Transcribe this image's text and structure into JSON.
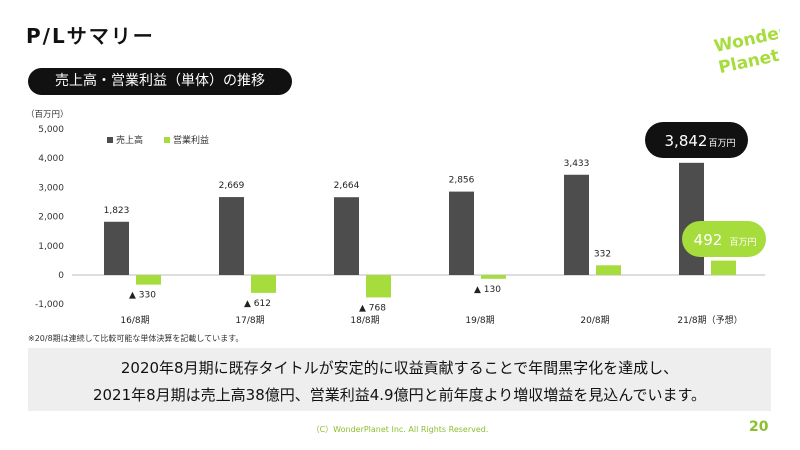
{
  "page": {
    "title": "P/Lサマリー",
    "section_title": "売上高・営業利益（単体）の推移",
    "note": "※20/8期は連続して比較可能な単体決算を記載しています。",
    "summary_line1": "2020年8月期に既存タイトルが安定的に収益貢献することで年間黒字化を達成し、",
    "summary_line2": "2021年8月期は売上高38億円、営業利益4.9億円と前年度より増収増益を見込んでいます。",
    "footer": "（C）WonderPlanet Inc.  All Rights Reserved.",
    "page_number": "20",
    "logo_line1": "Wonder",
    "logo_line2": "Planet"
  },
  "chart_data": {
    "type": "bar",
    "unit_label": "（百万円）",
    "categories": [
      "16/8期",
      "17/8期",
      "18/8期",
      "19/8期",
      "20/8期",
      "21/8期（予想）"
    ],
    "series": [
      {
        "name": "売上高",
        "color": "#4d4d4d",
        "values": [
          1823,
          2669,
          2664,
          2856,
          3433,
          3842
        ]
      },
      {
        "name": "営業利益",
        "color": "#a6dc3c",
        "values": [
          -330,
          -612,
          -768,
          -130,
          332,
          492
        ]
      }
    ],
    "bar_labels": {
      "売上高": [
        "1,823",
        "2,669",
        "2,664",
        "2,856",
        "3,433",
        null
      ],
      "営業利益": [
        "▲ 330",
        "▲ 612",
        "▲ 768",
        "▲ 130",
        "332",
        null
      ]
    },
    "callouts": {
      "sales": {
        "value": "3,842",
        "unit": "百万円"
      },
      "profit": {
        "value": "492",
        "unit": "百万円"
      }
    },
    "yticks": [
      "5,000",
      "4,000",
      "3,000",
      "2,000",
      "1,000",
      "0",
      "-1,000"
    ],
    "yticks_values": [
      5000,
      4000,
      3000,
      2000,
      1000,
      0,
      -1000
    ],
    "ylim": [
      -1000,
      5000
    ],
    "legend_position": "top-left",
    "grid": false
  }
}
